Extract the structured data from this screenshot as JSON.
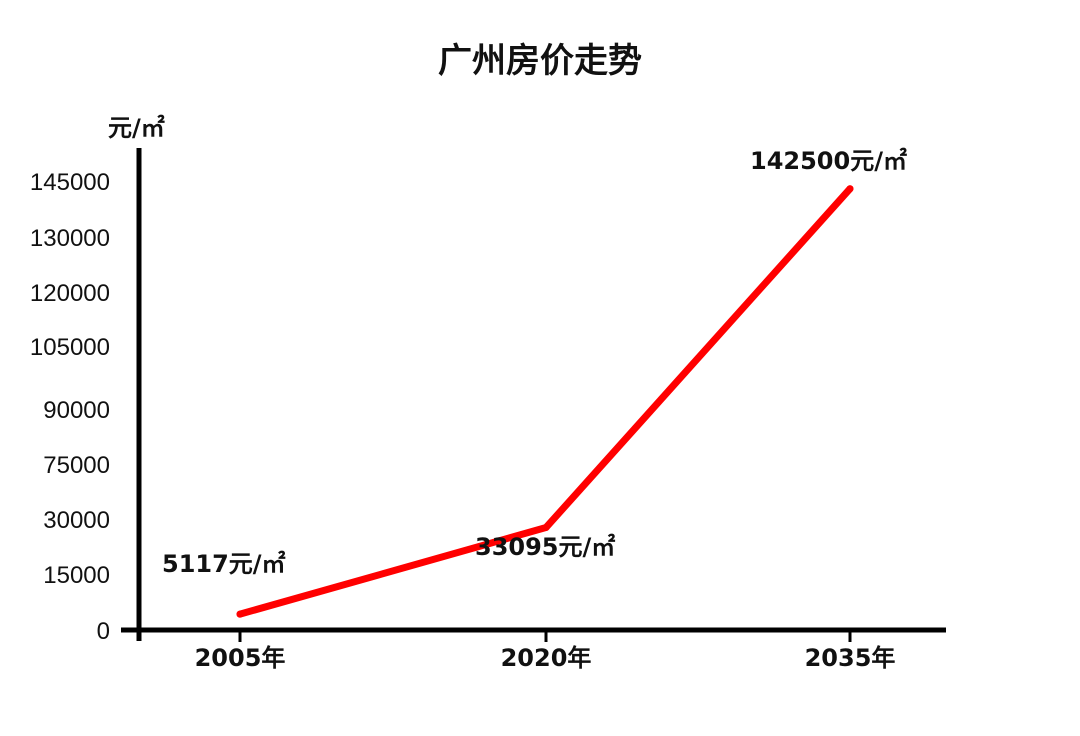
{
  "chart_data": {
    "type": "line",
    "title": "广州房价走势",
    "ylabel": "元/㎡",
    "xlabel": "",
    "categories": [
      "2005年",
      "2020年",
      "2035年"
    ],
    "series": [
      {
        "values": [
          5117,
          33095,
          142500
        ],
        "data_labels": [
          "5117元/㎡",
          "33095元/㎡",
          "142500元/㎡"
        ],
        "color": "#ff0000"
      }
    ],
    "yticks": [
      "0",
      "15000",
      "30000",
      "75000",
      "90000",
      "105000",
      "120000",
      "130000",
      "145000"
    ],
    "ylim": [
      0,
      145000
    ],
    "grid": false,
    "legend": "none"
  }
}
